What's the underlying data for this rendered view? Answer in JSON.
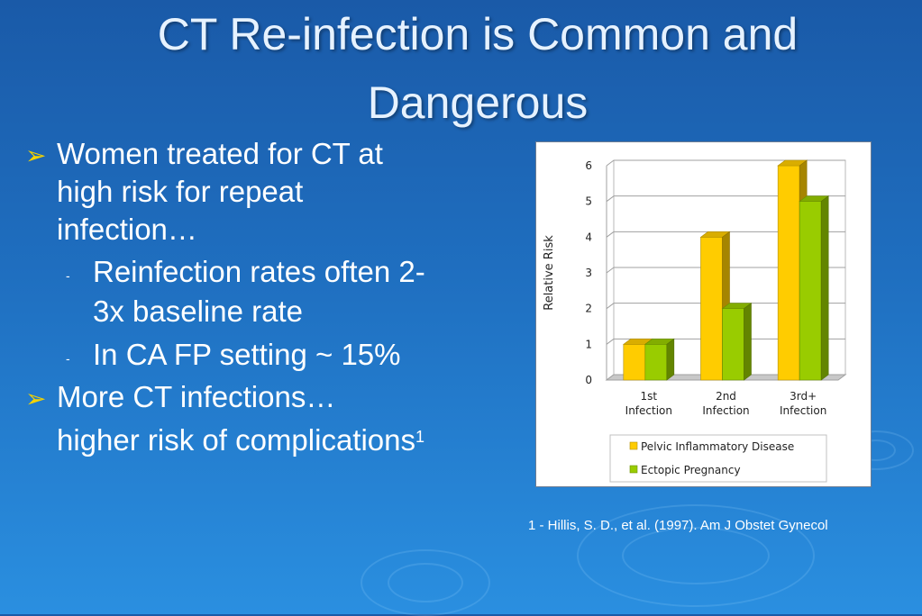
{
  "slide": {
    "title_line1": "CT Re-infection is Common and",
    "title_line2": "Dangerous"
  },
  "bullets": {
    "b1_line1": "Women treated for CT at",
    "b1_line2": "high risk for repeat",
    "b1_line3": "infection…",
    "sub1_line1": "Reinfection rates often 2-",
    "sub1_line2": "3x baseline rate",
    "sub2": "In CA FP setting ~ 15%",
    "b2_line1": "More CT infections…",
    "b2_line2": "higher risk of complications",
    "b2_sup": "1"
  },
  "citation": "1 - Hillis, S. D., et al. (1997). Am J Obstet Gynecol",
  "chart_data": {
    "type": "bar",
    "categories": [
      [
        "1st",
        "Infection"
      ],
      [
        "2nd",
        "Infection"
      ],
      [
        "3rd+",
        "Infection"
      ]
    ],
    "series": [
      {
        "name": "Pelvic Inflammatory Disease",
        "values": [
          1,
          4,
          6
        ],
        "color": "#ffcc00"
      },
      {
        "name": "Ectopic Pregnancy",
        "values": [
          1,
          2,
          5
        ],
        "color": "#99cc00"
      }
    ],
    "ylabel": "Relative Risk",
    "ylim": [
      0,
      6
    ],
    "yticks": [
      0,
      1,
      2,
      3,
      4,
      5,
      6
    ],
    "grid": true,
    "legend": "bottom"
  }
}
